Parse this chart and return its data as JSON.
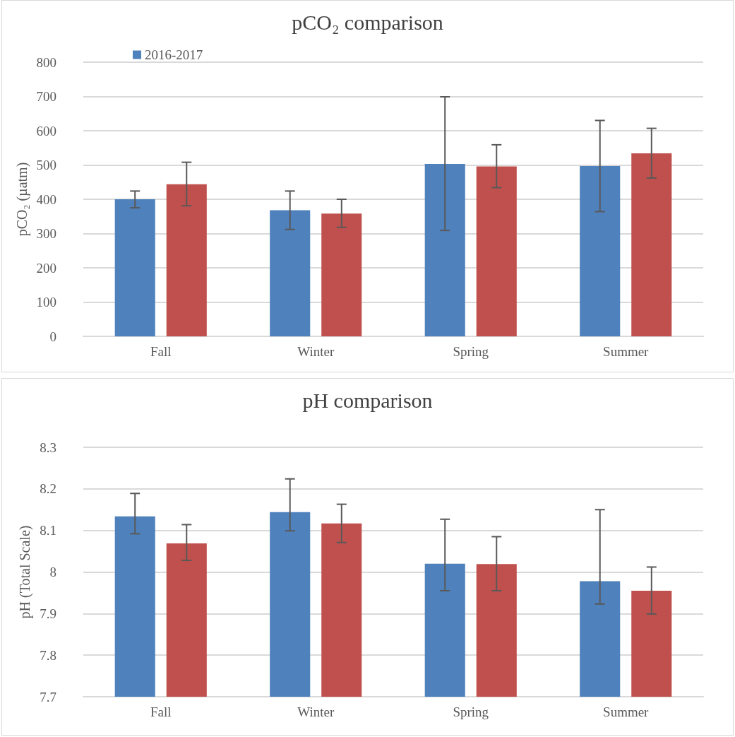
{
  "chart_data": [
    {
      "type": "bar",
      "title": "pCO₂ comparison",
      "ylabel": "pCO₂ (µatm)",
      "categories": [
        "Fall",
        "Winter",
        "Spring",
        "Summer"
      ],
      "series": [
        {
          "name": "2016-2017",
          "color": "#4f81bd",
          "values": [
            400,
            368,
            503,
            497
          ],
          "errors": [
            [
              375,
              424
            ],
            [
              312,
              424
            ],
            [
              309,
              699
            ],
            [
              364,
              630
            ]
          ]
        },
        {
          "color": "#c0504d",
          "values": [
            444,
            358,
            496,
            534
          ],
          "errors": [
            [
              381,
              508
            ],
            [
              318,
              400
            ],
            [
              434,
              559
            ],
            [
              462,
              607
            ]
          ]
        }
      ],
      "ylim": [
        0,
        800
      ],
      "yticks": [
        0,
        100,
        200,
        300,
        400,
        500,
        600,
        700,
        800
      ],
      "grid": "y",
      "legend": "top left"
    },
    {
      "type": "bar",
      "title": "pH comparison",
      "ylabel": "pH (Total Scale)",
      "categories": [
        "Fall",
        "Winter",
        "Spring",
        "Summer"
      ],
      "series": [
        {
          "color": "#4f81bd",
          "values": [
            8.134,
            8.144,
            8.02,
            7.978
          ],
          "errors": [
            [
              8.092,
              8.189
            ],
            [
              8.099,
              8.224
            ],
            [
              7.955,
              8.127
            ],
            [
              7.923,
              8.15
            ]
          ]
        },
        {
          "color": "#c0504d",
          "values": [
            8.069,
            8.117,
            8.019,
            7.955
          ],
          "errors": [
            [
              8.028,
              8.114
            ],
            [
              8.071,
              8.163
            ],
            [
              7.955,
              8.085
            ],
            [
              7.899,
              8.012
            ]
          ]
        }
      ],
      "ylim": [
        7.7,
        8.3
      ],
      "yticks": [
        7.7,
        7.8,
        7.9,
        8,
        8.1,
        8.2,
        8.3
      ],
      "grid": "y"
    }
  ]
}
